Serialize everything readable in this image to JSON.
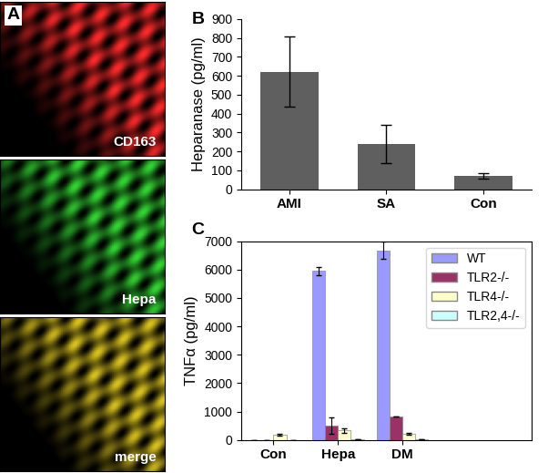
{
  "chart_data": [
    {
      "type": "image",
      "panel_label": "A",
      "panel_titles": [
        "CD163",
        "Hepa",
        "merge"
      ],
      "colors": [
        "#ff2a2a",
        "#33d633",
        "#d9c21f"
      ]
    },
    {
      "type": "bar",
      "panel_label": "B",
      "categories": [
        "AMI",
        "SA",
        "Con"
      ],
      "values": [
        620,
        240,
        70
      ],
      "errors": [
        185,
        100,
        15
      ],
      "color": "#5f5f5f",
      "y_label": "Heparanase (pg/ml)",
      "ylim": [
        0,
        900
      ],
      "yticks": [
        0,
        100,
        200,
        300,
        400,
        500,
        600,
        700,
        800,
        900
      ]
    },
    {
      "type": "bar",
      "panel_label": "C",
      "categories": [
        "Con",
        "Hepa",
        "DM"
      ],
      "series": [
        {
          "name": "WT",
          "color": "#9999ff",
          "values": [
            0,
            5950,
            6680
          ],
          "errors": [
            0,
            150,
            300
          ]
        },
        {
          "name": "TLR2-/-",
          "color": "#993366",
          "values": [
            0,
            500,
            820
          ],
          "errors": [
            0,
            280,
            0
          ]
        },
        {
          "name": "TLR4-/-",
          "color": "#ffffcc",
          "values": [
            180,
            330,
            220
          ],
          "errors": [
            30,
            80,
            30
          ]
        },
        {
          "name": "TLR2,4-/-",
          "color": "#ccffff",
          "values": [
            0,
            20,
            30
          ],
          "errors": [
            0,
            0,
            0
          ]
        }
      ],
      "y_label": "TNFα (pg/ml)",
      "ylim": [
        0,
        7000
      ],
      "yticks": [
        0,
        1000,
        2000,
        3000,
        4000,
        5000,
        6000,
        7000
      ],
      "legend": "upper right"
    }
  ]
}
